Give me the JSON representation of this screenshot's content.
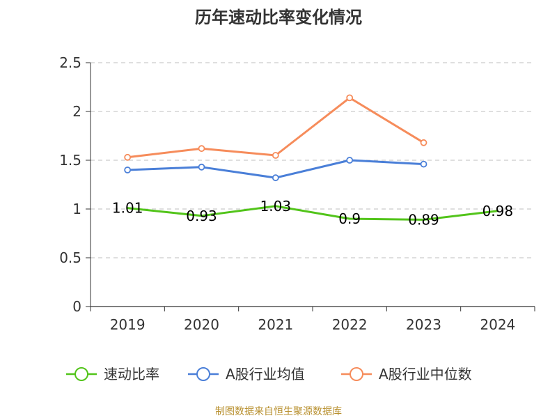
{
  "chart_data": {
    "type": "line",
    "title": "历年速动比率变化情况",
    "categories": [
      "2019",
      "2020",
      "2021",
      "2022",
      "2023",
      "2024"
    ],
    "ylim": [
      0,
      2.5
    ],
    "yticks": [
      "0",
      "0.5",
      "1",
      "1.5",
      "2",
      "2.5"
    ],
    "grid": true,
    "legend_position": "bottom",
    "series": [
      {
        "name": "速动比率",
        "color": "#52c41a",
        "values": [
          1.01,
          0.93,
          1.03,
          0.9,
          0.89,
          0.98
        ],
        "labels": [
          "1.01",
          "0.93",
          "1.03",
          "0.9",
          "0.89",
          "0.98"
        ],
        "markers": false
      },
      {
        "name": "A股行业均值",
        "color": "#4a7fd8",
        "values": [
          1.4,
          1.43,
          1.32,
          1.5,
          1.46,
          null
        ],
        "markers": true
      },
      {
        "name": "A股行业中位数",
        "color": "#f68c5b",
        "values": [
          1.53,
          1.62,
          1.55,
          2.14,
          1.68,
          null
        ],
        "markers": true
      }
    ]
  },
  "footer": "制图数据来自恒生聚源数据库"
}
